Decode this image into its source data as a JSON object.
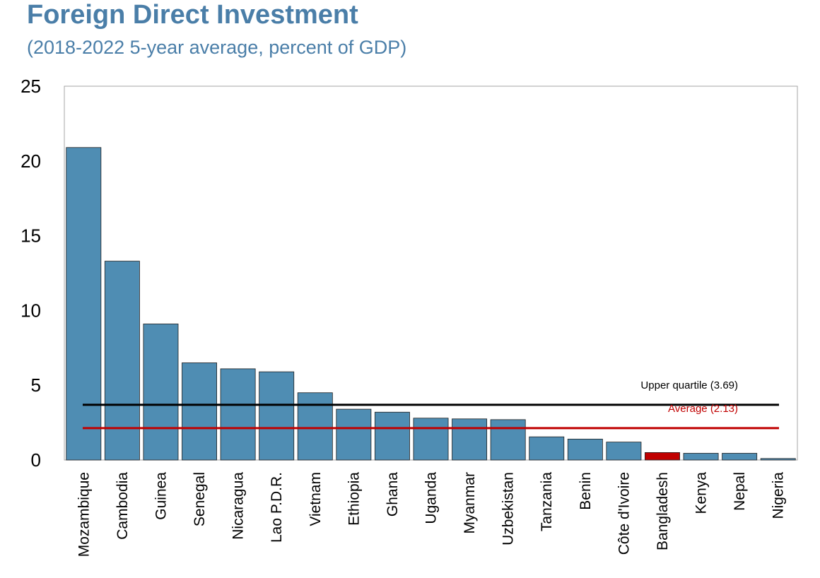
{
  "title": "Foreign Direct Investment",
  "subtitle": "(2018-2022 5-year average, percent of GDP)",
  "colors": {
    "bar": "#4f8db3",
    "highlight": "#c00000",
    "upper": "#000000",
    "average": "#c00000",
    "title": "#4a7ea8"
  },
  "chart_data": {
    "type": "bar",
    "categories": [
      "Mozambique",
      "Cambodia",
      "Guinea",
      "Senegal",
      "Nicaragua",
      "Lao P.D.R.",
      "Vietnam",
      "Ethiopia",
      "Ghana",
      "Uganda",
      "Myanmar",
      "Uzbekistan",
      "Tanzania",
      "Benin",
      "Côte d'Ivoire",
      "Bangladesh",
      "Kenya",
      "Nepal",
      "Nigeria"
    ],
    "values": [
      20.9,
      13.3,
      9.1,
      6.5,
      6.1,
      5.9,
      4.5,
      3.4,
      3.2,
      2.8,
      2.75,
      2.7,
      1.55,
      1.4,
      1.2,
      0.5,
      0.45,
      0.45,
      0.1
    ],
    "highlight": "Bangladesh",
    "ylim": [
      0,
      25
    ],
    "yticks": [
      "0",
      "5",
      "10",
      "15",
      "20",
      "25"
    ],
    "reference_lines": [
      {
        "label": "Upper quartile (3.69)",
        "value": 3.69,
        "color": "#000000"
      },
      {
        "label": "Average (2.13)",
        "value": 2.13,
        "color": "#c00000"
      }
    ],
    "xlabel": "",
    "ylabel": "",
    "grid": false,
    "legend": "none"
  }
}
